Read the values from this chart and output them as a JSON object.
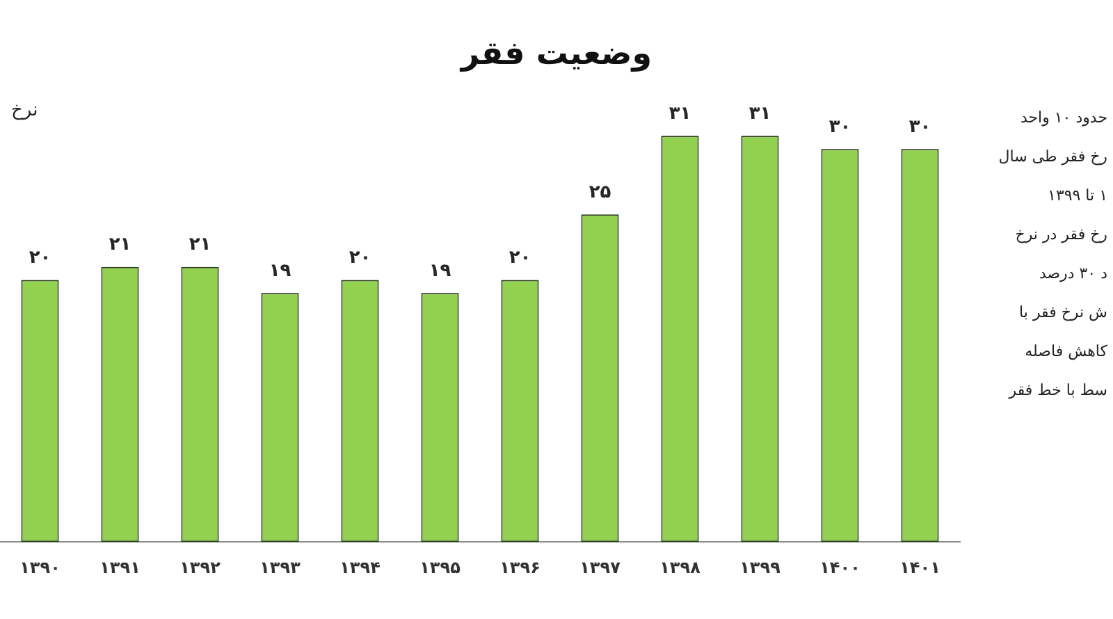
{
  "chart_data": {
    "type": "bar",
    "title": "وضعیت فقر",
    "ylabel": "نرخ",
    "categories": [
      "۱۳۹۰",
      "۱۳۹۱",
      "۱۳۹۲",
      "۱۳۹۳",
      "۱۳۹۴",
      "۱۳۹۵",
      "۱۳۹۶",
      "۱۳۹۷",
      "۱۳۹۸",
      "۱۳۹۹",
      "۱۴۰۰",
      "۱۴۰۱"
    ],
    "values": [
      20,
      21,
      21,
      19,
      20,
      19,
      20,
      25,
      31,
      31,
      30,
      30
    ],
    "value_labels": [
      "۲۰",
      "۲۱",
      "۲۱",
      "۱۹",
      "۲۰",
      "۱۹",
      "۲۰",
      "۲۵",
      "۳۱",
      "۳۱",
      "۳۰",
      "۳۰"
    ],
    "color": "#92d050",
    "tick_labels": "x",
    "annotations": [
      "حدود ۱۰ واحد",
      "رخ فقر طی سال",
      "۱ تا ۱۳۹۹",
      "رخ فقر در نرخ",
      "د ۳۰ درصد",
      "ش نرخ فقر با",
      "کاهش فاصله",
      "سط با خط فقر"
    ]
  }
}
